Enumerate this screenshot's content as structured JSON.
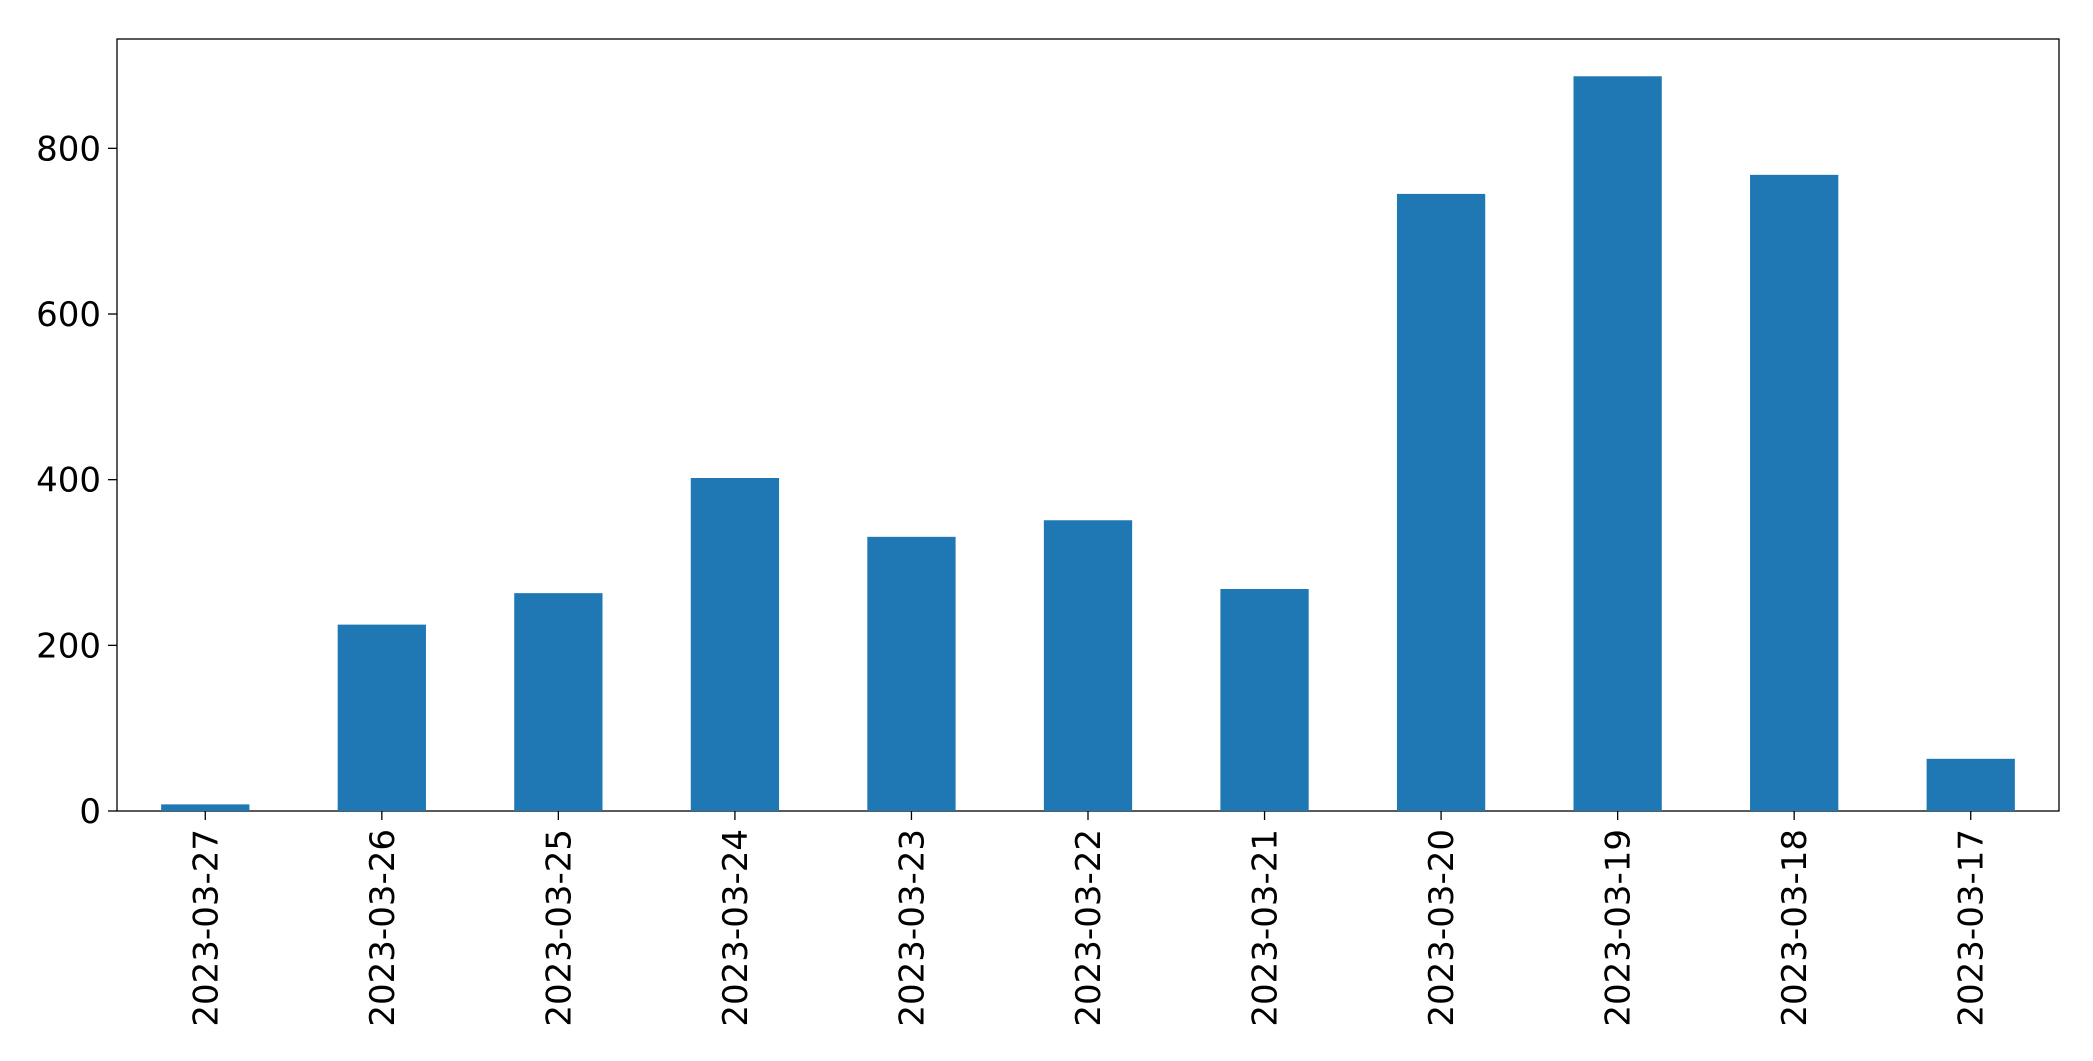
{
  "chart_data": {
    "type": "bar",
    "categories": [
      "2023-03-27",
      "2023-03-26",
      "2023-03-25",
      "2023-03-24",
      "2023-03-23",
      "2023-03-22",
      "2023-03-21",
      "2023-03-20",
      "2023-03-19",
      "2023-03-18",
      "2023-03-17"
    ],
    "values": [
      8,
      225,
      263,
      402,
      331,
      351,
      268,
      745,
      887,
      768,
      63
    ],
    "color": "#1f77b4",
    "ylim": [
      0,
      932
    ],
    "yticks": [
      0,
      200,
      400,
      600,
      800
    ],
    "grid": false
  }
}
